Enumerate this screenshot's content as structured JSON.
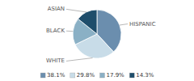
{
  "chart_data": {
    "type": "pie",
    "categories": [
      "HISPANIC",
      "WHITE",
      "BLACK",
      "ASIAN"
    ],
    "values": [
      38.1,
      29.8,
      17.9,
      14.3
    ],
    "value_labels": [
      "38.1%",
      "29.8%",
      "17.9%",
      "14.3%"
    ],
    "colors": [
      "#6b8eae",
      "#c8dce8",
      "#8ab0c5",
      "#1e4d6b"
    ],
    "legend": "bottom"
  }
}
